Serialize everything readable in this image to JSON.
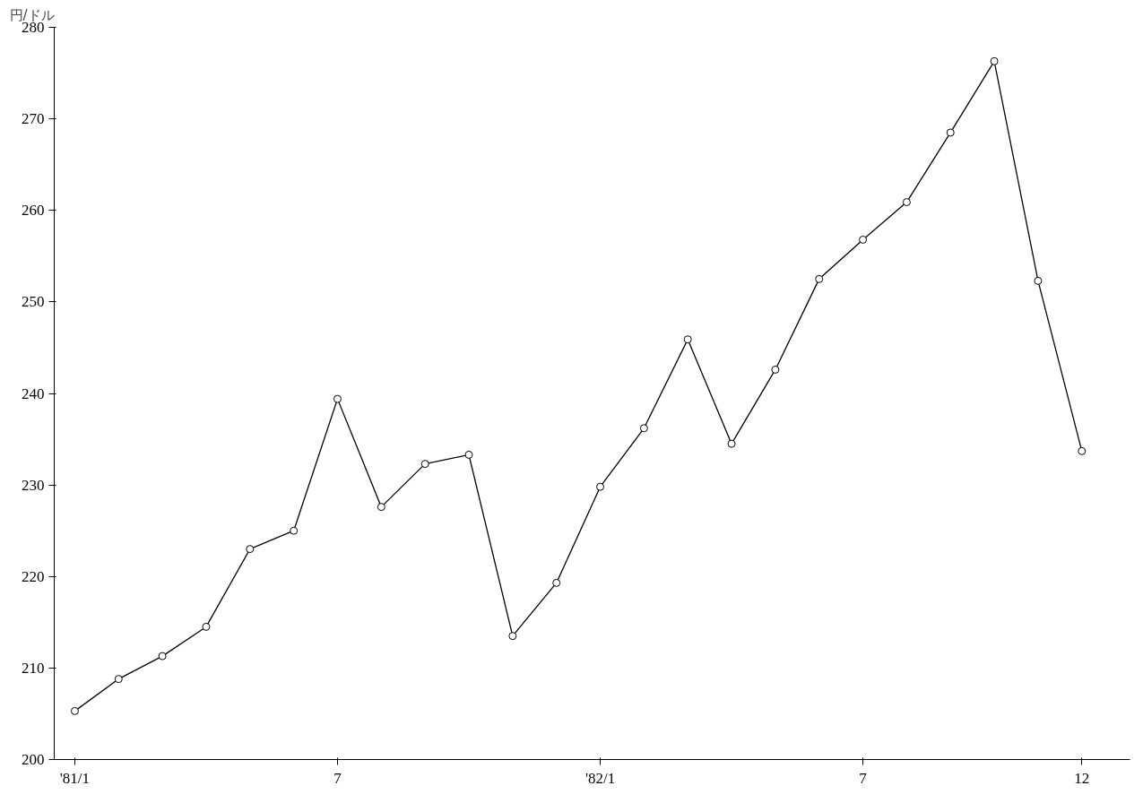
{
  "chart_data": {
    "type": "line",
    "ylabel": "円/ドル",
    "categories": [
      "'81/1",
      null,
      null,
      null,
      null,
      null,
      "7",
      null,
      null,
      null,
      null,
      null,
      "'82/1",
      null,
      null,
      null,
      null,
      null,
      "7",
      null,
      null,
      null,
      null,
      "12"
    ],
    "series": [
      {
        "color": "#000000",
        "values": [
          205.3,
          208.8,
          211.3,
          214.5,
          223.0,
          225.0,
          239.4,
          227.6,
          232.3,
          233.3,
          213.5,
          219.3,
          229.8,
          236.2,
          245.9,
          234.5,
          242.6,
          252.5,
          256.8,
          260.9,
          268.5,
          276.3,
          252.3,
          233.7
        ]
      }
    ],
    "ylim": [
      200,
      280
    ],
    "yticks": [
      200,
      210,
      220,
      230,
      240,
      250,
      260,
      270,
      280
    ],
    "grid": false,
    "marker": "circle",
    "line_style": "solid"
  }
}
